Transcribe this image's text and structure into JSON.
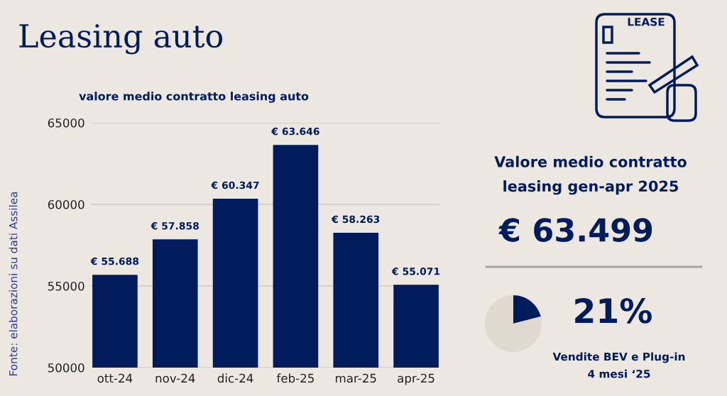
{
  "chart_data": [
    {
      "type": "bar",
      "title": "Leasing auto",
      "subtitle": "valore medio contratto leasing auto",
      "categories": [
        "ott-24",
        "nov-24",
        "dic-24",
        "feb-25",
        "mar-25",
        "apr-25"
      ],
      "values": [
        55688,
        57858,
        60347,
        63646,
        58263,
        55071
      ],
      "value_labels": [
        "€ 55.688",
        "€ 57.858",
        "€ 60.347",
        "€ 63.646",
        "€ 58.263",
        "€ 55.071"
      ],
      "color": "#001c5c",
      "ylim": [
        50000,
        65000
      ],
      "yticks": [
        50000,
        55000,
        60000,
        65000
      ],
      "grid": "y",
      "annotations": [
        "Fonte: elaborazioni su dati Assilea"
      ]
    },
    {
      "type": "other",
      "annotations": [
        "LEASE",
        "Valore medio contratto\nleasing gen-apr 2025",
        "€ 63.499"
      ]
    },
    {
      "type": "pie",
      "categories": [
        null,
        null
      ],
      "values": [
        21,
        79
      ],
      "colors": [
        "#001c5c",
        "#e0d9cf"
      ],
      "annotations": [
        "21%",
        "Vendite BEV e Plug-in\n4 mesi ‘25"
      ]
    }
  ]
}
